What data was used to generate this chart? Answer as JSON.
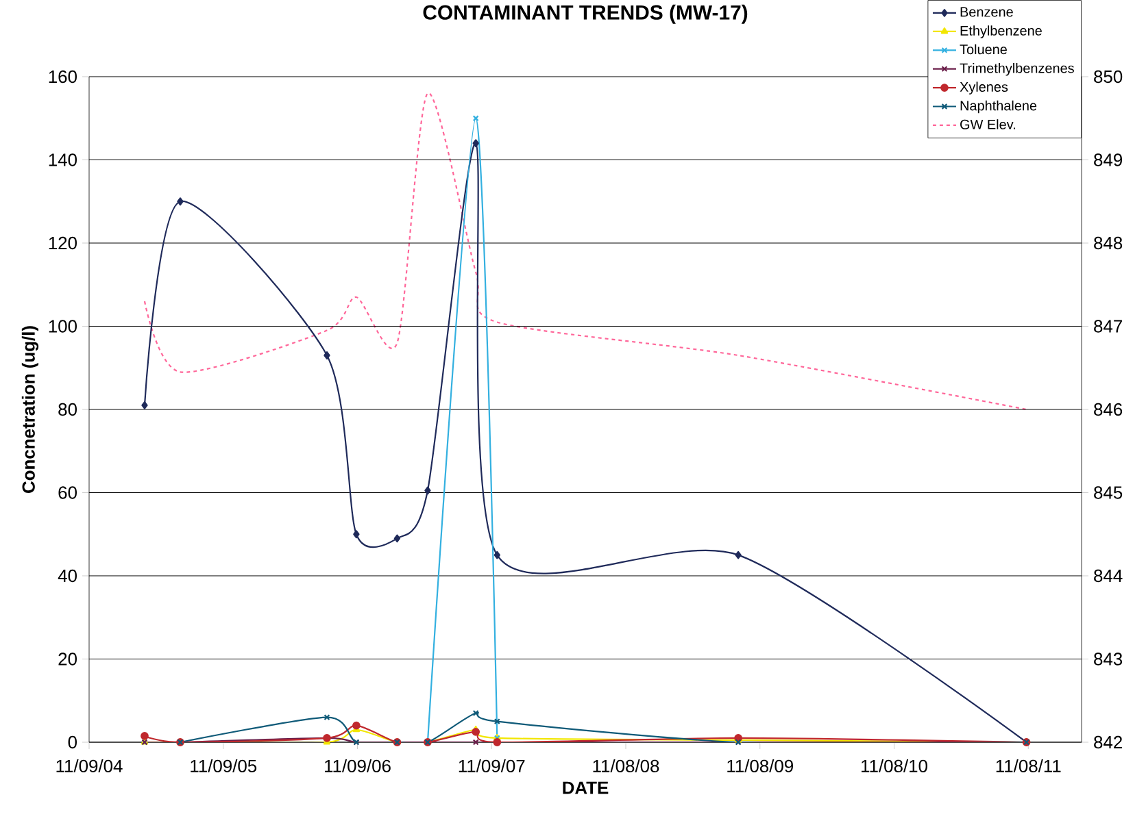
{
  "chart_data": {
    "type": "line",
    "title": "CONTAMINANT TRENDS (MW-17)",
    "xlabel": "DATE",
    "ylabel": "Concnetration (ug/l)",
    "x": [
      "2005-04-09",
      "2005-07-15",
      "2006-08-18",
      "2006-11-06",
      "2007-02-25",
      "2007-05-19",
      "2007-09-27",
      "2007-11-24",
      "2009-09-10",
      "2011-11-03"
    ],
    "xlim": [
      "2004-11-09",
      "2012-04-01"
    ],
    "xticks": [
      {
        "value": "2004-11-09",
        "label": "11/09/04"
      },
      {
        "value": "2005-11-09",
        "label": "11/09/05"
      },
      {
        "value": "2006-11-09",
        "label": "11/09/06"
      },
      {
        "value": "2007-11-09",
        "label": "11/09/07"
      },
      {
        "value": "2008-11-08",
        "label": "11/08/08"
      },
      {
        "value": "2009-11-08",
        "label": "11/08/09"
      },
      {
        "value": "2010-11-08",
        "label": "11/08/10"
      },
      {
        "value": "2011-11-08",
        "label": "11/08/11"
      }
    ],
    "ylim": [
      0,
      160
    ],
    "yticks": [
      0,
      20,
      40,
      60,
      80,
      100,
      120,
      140,
      160
    ],
    "y2lim": [
      842,
      850
    ],
    "y2ticks": [
      842,
      843,
      844,
      845,
      846,
      847,
      848,
      849,
      850
    ],
    "grid": "y",
    "legend": "top right",
    "series": [
      {
        "name": "Benzene",
        "color": "#1f2a5a",
        "marker": "diamond",
        "values": [
          81,
          130,
          93,
          50,
          49,
          60.5,
          144,
          45,
          45,
          0
        ]
      },
      {
        "name": "Ethylbenzene",
        "color": "#f2e600",
        "marker": "triangle",
        "values": [
          0,
          0,
          0,
          3,
          0,
          0,
          3,
          1,
          0.5,
          0
        ]
      },
      {
        "name": "Toluene",
        "color": "#33b0e0",
        "marker": "cross",
        "values": [
          0,
          null,
          null,
          null,
          null,
          0,
          150,
          1,
          null,
          null
        ]
      },
      {
        "name": "Trimethylbenzenes",
        "color": "#6b1f4a",
        "marker": "cross",
        "values": [
          0,
          0,
          1,
          0,
          0,
          0,
          0,
          0,
          0,
          0
        ]
      },
      {
        "name": "Xylenes",
        "color": "#c0282d",
        "marker": "circle",
        "values": [
          1.5,
          0,
          1,
          4,
          0,
          0,
          2.5,
          0,
          1,
          0
        ]
      },
      {
        "name": "Naphthalene",
        "color": "#0f5a78",
        "marker": "cross",
        "values": [
          null,
          0,
          6,
          0,
          0,
          0,
          7,
          5,
          0,
          0
        ]
      },
      {
        "name": "GW Elev.",
        "color": "#ff6699",
        "marker": "none",
        "line_style": "dotted",
        "axis": "y2",
        "values": [
          847.3,
          846.45,
          846.95,
          847.35,
          846.8,
          849.8,
          847.65,
          847.05,
          846.65,
          846.0
        ]
      }
    ]
  }
}
